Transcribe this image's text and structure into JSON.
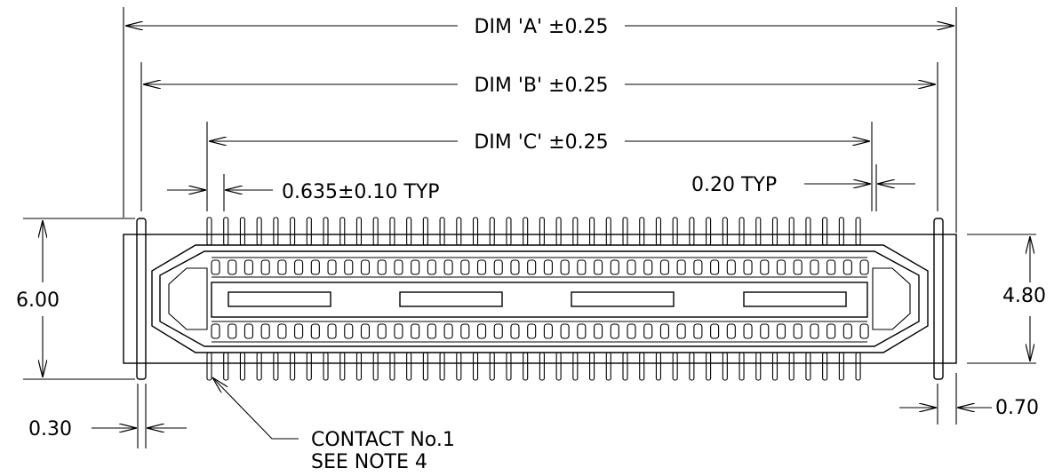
{
  "dimensions": {
    "dim_a": "DIM 'A' ±0.25",
    "dim_b": "DIM 'B' ±0.25",
    "dim_c": "DIM 'C' ±0.25",
    "pitch": "0.635±0.10 TYP",
    "pin_width": "0.20 TYP",
    "height_overall": "6.00",
    "height_inner": "4.80",
    "post_width": "0.30",
    "post_offset": "0.70"
  },
  "callouts": {
    "contact_line1": "CONTACT No.1",
    "contact_line2": "SEE NOTE 4"
  },
  "colors": {
    "ink": "#000000",
    "paper": "#ffffff"
  }
}
